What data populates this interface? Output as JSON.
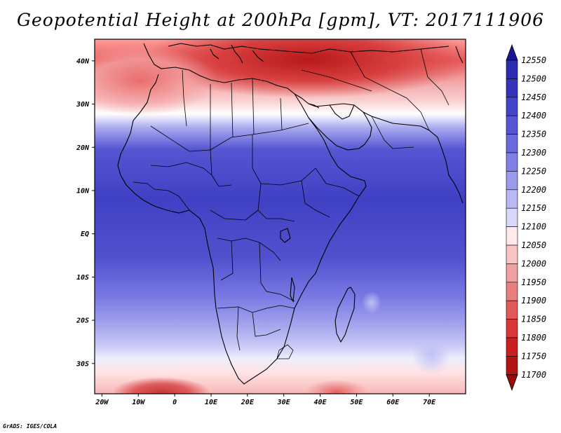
{
  "title": "Geopotential Height at 200hPa [gpm], VT: 2017111906",
  "credit": "GrADS: IGES/COLA",
  "map": {
    "lon_range": [
      -22,
      80
    ],
    "lat_range": [
      -37,
      45
    ],
    "lat_ticks": [
      {
        "lat": 40,
        "label": "40N"
      },
      {
        "lat": 30,
        "label": "30N"
      },
      {
        "lat": 20,
        "label": "20N"
      },
      {
        "lat": 10,
        "label": "10N"
      },
      {
        "lat": 0,
        "label": "EQ"
      },
      {
        "lat": -10,
        "label": "10S"
      },
      {
        "lat": -20,
        "label": "20S"
      },
      {
        "lat": -30,
        "label": "30S"
      }
    ],
    "lon_ticks": [
      {
        "lon": -20,
        "label": "20W"
      },
      {
        "lon": -10,
        "label": "10W"
      },
      {
        "lon": 0,
        "label": "0"
      },
      {
        "lon": 10,
        "label": "10E"
      },
      {
        "lon": 20,
        "label": "20E"
      },
      {
        "lon": 30,
        "label": "30E"
      },
      {
        "lon": 40,
        "label": "40E"
      },
      {
        "lon": 50,
        "label": "50E"
      },
      {
        "lon": 60,
        "label": "60E"
      },
      {
        "lon": 70,
        "label": "70E"
      }
    ]
  },
  "colorbar": {
    "levels": [
      12550,
      12500,
      12450,
      12400,
      12350,
      12300,
      12250,
      12200,
      12150,
      12100,
      12050,
      12000,
      11950,
      11900,
      11850,
      11800,
      11750,
      11700
    ],
    "colors": [
      "#1b1696",
      "#2b2ab0",
      "#3333bb",
      "#4444c8",
      "#5656d3",
      "#6a6ade",
      "#8080e8",
      "#9a9aee",
      "#b8b8f4",
      "#d8d8fa",
      "#ffeaea",
      "#f8c4c4",
      "#f0a0a0",
      "#e87e7e",
      "#e05858",
      "#d83838",
      "#c82020",
      "#b01414",
      "#9a0a0a"
    ]
  }
}
